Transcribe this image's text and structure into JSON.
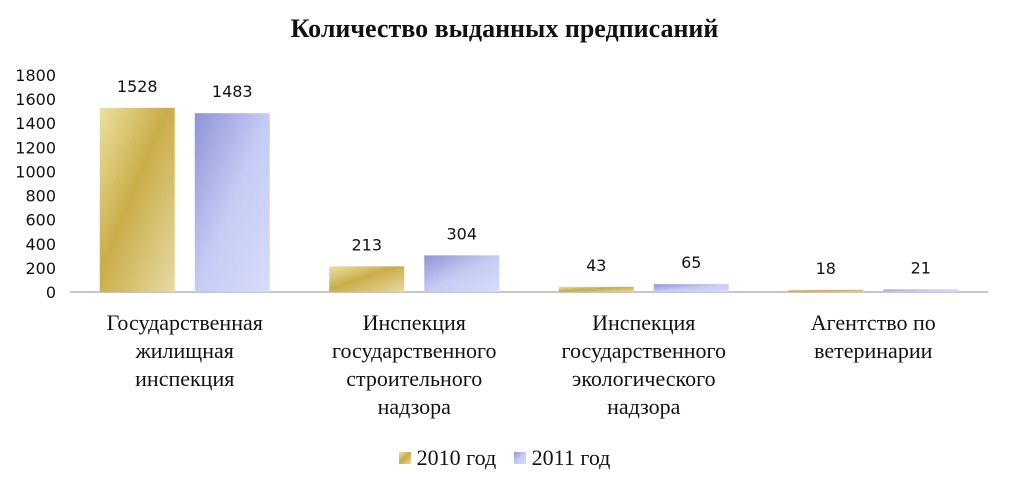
{
  "chart_data": {
    "type": "bar",
    "title": "Количество выданных предписаний",
    "categories": [
      [
        "Государственная",
        "жилищная",
        "инспекция"
      ],
      [
        "Инспекция",
        "государственного",
        "строительного",
        "надзора"
      ],
      [
        "Инспекция",
        "государственного",
        "экологического",
        "надзора"
      ],
      [
        "Агентство по",
        "ветеринарии"
      ]
    ],
    "series": [
      {
        "name": "2010 год",
        "values": [
          1528,
          213,
          43,
          18
        ],
        "color": "#d9c46a"
      },
      {
        "name": "2011 год",
        "values": [
          1483,
          304,
          65,
          21
        ],
        "color": "#a9afe6"
      }
    ],
    "ylim": [
      0,
      1800
    ],
    "yticks": [
      0,
      200,
      400,
      600,
      800,
      1000,
      1200,
      1400,
      1600,
      1800
    ],
    "grid": false,
    "legend": "bottom"
  }
}
